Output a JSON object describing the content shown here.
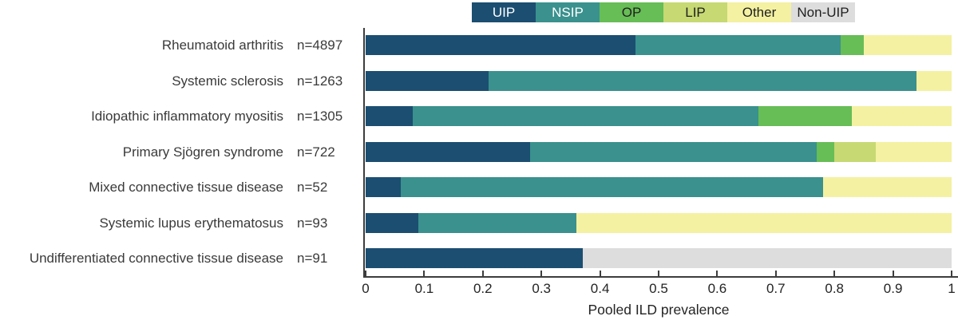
{
  "figure": {
    "background": "#ffffff"
  },
  "legend": {
    "position": "top",
    "items": [
      {
        "label": "UIP",
        "color": "#1b4e71",
        "text_color": "#ffffff"
      },
      {
        "label": "NSIP",
        "color": "#3a918e",
        "text_color": "#ffffff"
      },
      {
        "label": "OP",
        "color": "#67bd56",
        "text_color": "#1f1f1f"
      },
      {
        "label": "LIP",
        "color": "#c6d973",
        "text_color": "#1f1f1f"
      },
      {
        "label": "Other",
        "color": "#f4f1a2",
        "text_color": "#1f1f1f"
      },
      {
        "label": "Non-UIP",
        "color": "#dddddd",
        "text_color": "#1f1f1f"
      }
    ]
  },
  "chart_data": {
    "type": "bar",
    "orientation": "horizontal",
    "stacked": true,
    "title": "",
    "xlabel": "Pooled ILD prevalence",
    "xlim": [
      0,
      1
    ],
    "x_ticks": [
      "0",
      "0.1",
      "0.2",
      "0.3",
      "0.4",
      "0.5",
      "0.6",
      "0.7",
      "0.8",
      "0.9",
      "1"
    ],
    "grid": false,
    "legend_position": "top",
    "patterns": [
      "UIP",
      "NSIP",
      "OP",
      "LIP",
      "Other",
      "Non-UIP"
    ],
    "rows": [
      {
        "category": "Rheumatoid arthritis",
        "n_label": "n=4897",
        "segments": [
          {
            "pattern": "UIP",
            "value": 0.46
          },
          {
            "pattern": "NSIP",
            "value": 0.35
          },
          {
            "pattern": "OP",
            "value": 0.04
          },
          {
            "pattern": "Other",
            "value": 0.15
          }
        ]
      },
      {
        "category": "Systemic sclerosis",
        "n_label": "n=1263",
        "segments": [
          {
            "pattern": "UIP",
            "value": 0.21
          },
          {
            "pattern": "NSIP",
            "value": 0.73
          },
          {
            "pattern": "Other",
            "value": 0.06
          }
        ]
      },
      {
        "category": "Idiopathic inflammatory myositis",
        "n_label": "n=1305",
        "segments": [
          {
            "pattern": "UIP",
            "value": 0.08
          },
          {
            "pattern": "NSIP",
            "value": 0.59
          },
          {
            "pattern": "OP",
            "value": 0.16
          },
          {
            "pattern": "Other",
            "value": 0.17
          }
        ]
      },
      {
        "category": "Primary Sjögren syndrome",
        "n_label": "n=722",
        "segments": [
          {
            "pattern": "UIP",
            "value": 0.28
          },
          {
            "pattern": "NSIP",
            "value": 0.49
          },
          {
            "pattern": "OP",
            "value": 0.03
          },
          {
            "pattern": "LIP",
            "value": 0.07
          },
          {
            "pattern": "Other",
            "value": 0.13
          }
        ]
      },
      {
        "category": "Mixed connective tissue disease",
        "n_label": "n=52",
        "segments": [
          {
            "pattern": "UIP",
            "value": 0.06
          },
          {
            "pattern": "NSIP",
            "value": 0.72
          },
          {
            "pattern": "Other",
            "value": 0.22
          }
        ]
      },
      {
        "category": "Systemic lupus erythematosus",
        "n_label": "n=93",
        "segments": [
          {
            "pattern": "UIP",
            "value": 0.09
          },
          {
            "pattern": "NSIP",
            "value": 0.27
          },
          {
            "pattern": "Other",
            "value": 0.64
          }
        ]
      },
      {
        "category": "Undifferentiated connective tissue disease",
        "n_label": "n=91",
        "segments": [
          {
            "pattern": "UIP",
            "value": 0.37
          },
          {
            "pattern": "Non-UIP",
            "value": 0.63
          }
        ]
      }
    ]
  }
}
